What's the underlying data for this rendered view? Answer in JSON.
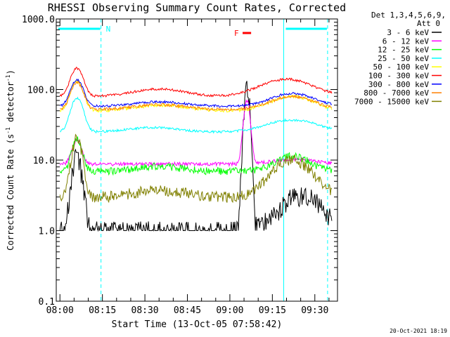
{
  "chart_data": {
    "type": "line",
    "title": "RHESSI Observing Summary Count Rates, Corrected",
    "xlabel": "Start Time (13-Oct-05 07:58:42)",
    "ylabel_prefix": "Corrected Count Rate (s",
    "ylabel_exp1": "-1",
    "ylabel_mid": " detector",
    "ylabel_exp2": "-1",
    "ylabel_suffix": ")",
    "y_scale": "log",
    "ylim": [
      0.1,
      1000
    ],
    "xlim": [
      "07:58:42",
      "09:38:00"
    ],
    "y_ticks": [
      {
        "value": 1000,
        "label": "1000.0"
      },
      {
        "value": 100,
        "label": "100.0"
      },
      {
        "value": 10,
        "label": "10.0"
      },
      {
        "value": 1,
        "label": "1.0"
      },
      {
        "value": 0.1,
        "label": "0.1"
      }
    ],
    "x_ticks": [
      {
        "time": "08:00",
        "label": "08:00"
      },
      {
        "time": "08:15",
        "label": "08:15"
      },
      {
        "time": "08:30",
        "label": "08:30"
      },
      {
        "time": "08:45",
        "label": "08:45"
      },
      {
        "time": "09:00",
        "label": "09:00"
      },
      {
        "time": "09:15",
        "label": "09:15"
      },
      {
        "time": "09:30",
        "label": "09:30"
      }
    ],
    "legend_header": [
      "Det 1,3,4,5,6,9,",
      "Att 0"
    ],
    "series": [
      {
        "name": "3 - 6 keV",
        "color": "#000000"
      },
      {
        "name": "6 - 12 keV",
        "color": "#ff00ff"
      },
      {
        "name": "12 - 25 keV",
        "color": "#00ff00"
      },
      {
        "name": "25 - 50 keV",
        "color": "#00ffff"
      },
      {
        "name": "50 - 100 keV",
        "color": "#ffff00"
      },
      {
        "name": "100 - 300 keV",
        "color": "#ff0000"
      },
      {
        "name": "300 - 800 keV",
        "color": "#0000ff"
      },
      {
        "name": "800 - 7000 keV",
        "color": "#ff8000"
      },
      {
        "name": "7000 - 15000 keV",
        "color": "#808000"
      }
    ],
    "night_bars": [
      {
        "label": "N",
        "start": "07:58:42",
        "end": "08:14:30"
      },
      {
        "label": "",
        "start": "09:19:00",
        "end": "09:34:30"
      }
    ],
    "flare_marker": {
      "label": "F",
      "start": "09:04:30",
      "end": "09:07:30"
    },
    "vertical_lines": [
      {
        "time": "07:58:42",
        "style": "solid"
      },
      {
        "time": "08:14:30",
        "style": "dashed"
      },
      {
        "time": "09:19:00",
        "style": "solid"
      },
      {
        "time": "09:34:30",
        "style": "dashed"
      }
    ],
    "grid": false,
    "legend_position": "right"
  },
  "footer": {
    "timestamp": "20-Oct-2021 18:19"
  },
  "colors": {
    "night": "#00ffff",
    "flare": "#ff0000",
    "axes": "#000000"
  }
}
